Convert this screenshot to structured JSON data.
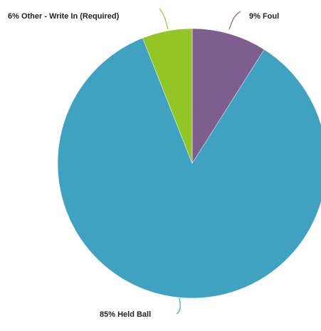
{
  "chart_data": {
    "type": "pie",
    "start_angle_deg": 0,
    "direction": "clockwise",
    "slices": [
      {
        "label": "Foul",
        "value": 9,
        "display": "9% Foul",
        "color": "#7d5e8f"
      },
      {
        "label": "Held Ball",
        "value": 85,
        "display": "85% Held Ball",
        "color": "#3ea2c0"
      },
      {
        "label": "Other - Write In (Required)",
        "value": 6,
        "display": "6% Other - Write In (Required)",
        "color": "#93c524"
      }
    ]
  }
}
